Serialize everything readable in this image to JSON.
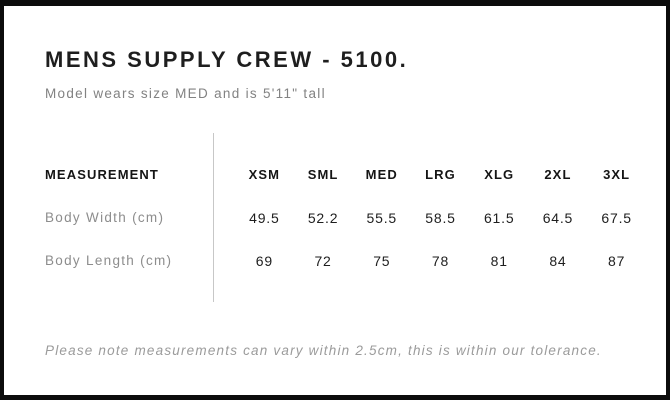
{
  "header": {
    "title": "MENS SUPPLY CREW - 5100.",
    "subtitle": "Model wears size MED and is 5'11\" tall"
  },
  "table": {
    "measurement_header": "MEASUREMENT",
    "size_headers": [
      "XSM",
      "SML",
      "MED",
      "LRG",
      "XLG",
      "2XL",
      "3XL"
    ],
    "rows": [
      {
        "label": "Body Width (cm)",
        "values": [
          "49.5",
          "52.2",
          "55.5",
          "58.5",
          "61.5",
          "64.5",
          "67.5"
        ]
      },
      {
        "label": "Body Length (cm)",
        "values": [
          "69",
          "72",
          "75",
          "78",
          "81",
          "84",
          "87"
        ]
      }
    ]
  },
  "note": "Please note measurements can vary within 2.5cm, this is within our tolerance.",
  "colors": {
    "frame_border": "#0c0c0c",
    "title_text": "#1e1e1e",
    "muted_text": "#8d8d8d",
    "note_text": "#9b9b9b",
    "divider": "#c7c7c7",
    "background": "#ffffff"
  },
  "chart_data": {
    "type": "table",
    "title": "MENS SUPPLY CREW - 5100.",
    "subtitle": "Model wears size MED and is 5'11\" tall",
    "columns": [
      "MEASUREMENT",
      "XSM",
      "SML",
      "MED",
      "LRG",
      "XLG",
      "2XL",
      "3XL"
    ],
    "rows": [
      [
        "Body Width (cm)",
        49.5,
        52.2,
        55.5,
        58.5,
        61.5,
        64.5,
        67.5
      ],
      [
        "Body Length (cm)",
        69,
        72,
        75,
        78,
        81,
        84,
        87
      ]
    ],
    "footnote": "Please note measurements can vary within 2.5cm, this is within our tolerance."
  }
}
